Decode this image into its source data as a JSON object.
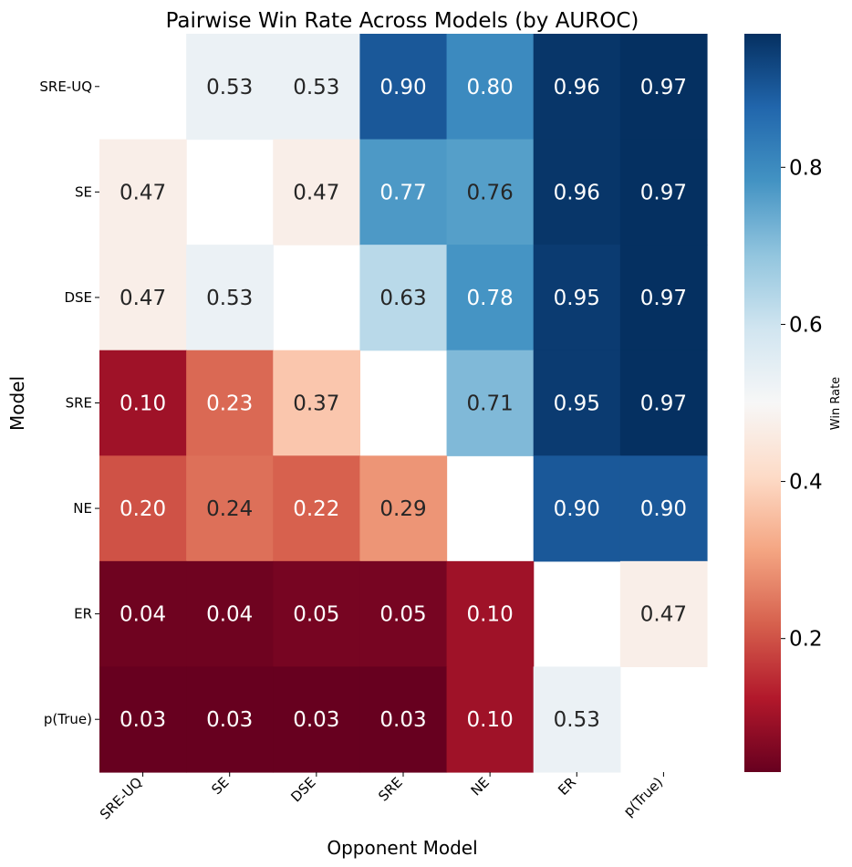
{
  "chart_data": {
    "type": "heatmap",
    "title": "Pairwise Win Rate Across Models (by AUROC)",
    "xlabel": "Opponent Model",
    "ylabel": "Model",
    "rows": [
      "SRE-UQ",
      "SE",
      "DSE",
      "SRE",
      "NE",
      "ER",
      "p(True)"
    ],
    "columns": [
      "SRE-UQ",
      "SE",
      "DSE",
      "SRE",
      "NE",
      "ER",
      "p(True)"
    ],
    "values": [
      [
        null,
        0.53,
        0.53,
        0.9,
        0.8,
        0.96,
        0.97
      ],
      [
        0.47,
        null,
        0.47,
        0.77,
        0.76,
        0.96,
        0.97
      ],
      [
        0.47,
        0.53,
        null,
        0.63,
        0.78,
        0.95,
        0.97
      ],
      [
        0.1,
        0.23,
        0.37,
        null,
        0.71,
        0.95,
        0.97
      ],
      [
        0.2,
        0.24,
        0.22,
        0.29,
        null,
        0.9,
        0.9
      ],
      [
        0.04,
        0.04,
        0.05,
        0.05,
        0.1,
        null,
        0.47
      ],
      [
        0.03,
        0.03,
        0.03,
        0.03,
        0.1,
        0.53,
        null
      ]
    ],
    "colormap": "RdBu",
    "color_range": [
      0.03,
      0.97
    ],
    "colorbar": {
      "label": "Win Rate",
      "ticks": [
        0.2,
        0.4,
        0.6,
        0.8
      ],
      "tick_labels": [
        "0.2",
        "0.4",
        "0.6",
        "0.8"
      ]
    },
    "annotation_format": "2 decimals",
    "diagonal": "empty"
  }
}
